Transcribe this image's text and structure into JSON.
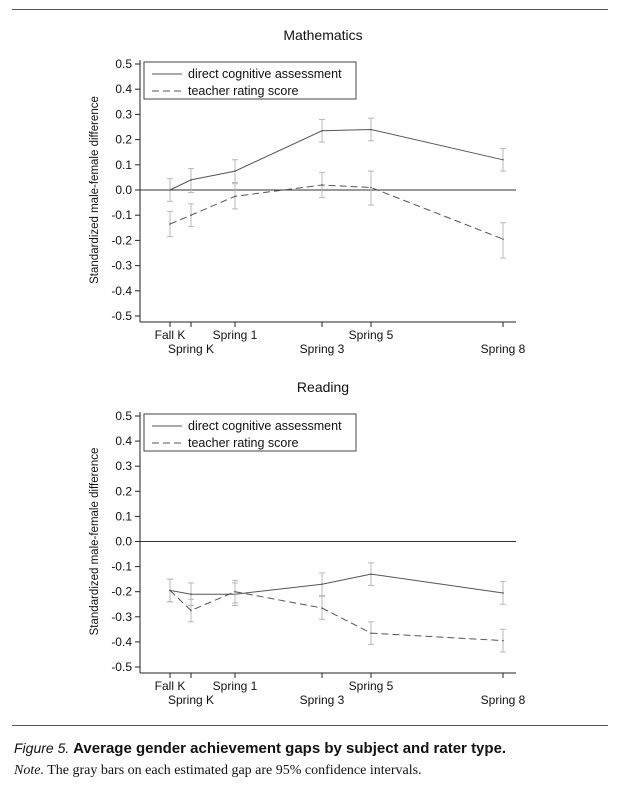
{
  "chart_data": [
    {
      "type": "line",
      "title": "Mathematics",
      "xlabel": "",
      "ylabel": "Standardized male-female difference",
      "ylim": [
        -0.5,
        0.5
      ],
      "yticks": [
        "0.5",
        "0.4",
        "0.3",
        "0.2",
        "0.1",
        "0.0",
        "-0.1",
        "-0.2",
        "-0.3",
        "-0.4",
        "-0.5"
      ],
      "x": [
        0,
        1,
        2,
        3,
        4,
        5
      ],
      "xticks": [
        {
          "label": "Fall K",
          "row": 1
        },
        {
          "label": "Spring K",
          "row": 2
        },
        {
          "label": "Spring 1",
          "row": 1
        },
        {
          "label": "Spring 3",
          "row": 2
        },
        {
          "label": "Spring 5",
          "row": 1
        },
        {
          "label": "Spring 8",
          "row": 2
        }
      ],
      "series": [
        {
          "name": "direct cognitive assessment",
          "style": "solid",
          "values": [
            0.0,
            0.04,
            0.075,
            0.235,
            0.24,
            0.12
          ],
          "ci_low": [
            -0.045,
            -0.01,
            0.03,
            0.19,
            0.195,
            0.075
          ],
          "ci_high": [
            0.045,
            0.085,
            0.12,
            0.28,
            0.285,
            0.165
          ]
        },
        {
          "name": "teacher rating score",
          "style": "dashed",
          "values": [
            -0.135,
            -0.1,
            -0.025,
            0.02,
            0.01,
            -0.195
          ],
          "ci_low": [
            -0.185,
            -0.145,
            -0.075,
            -0.03,
            -0.06,
            -0.27
          ],
          "ci_high": [
            -0.085,
            -0.055,
            0.025,
            0.07,
            0.075,
            -0.13
          ]
        }
      ]
    },
    {
      "type": "line",
      "title": "Reading",
      "xlabel": "",
      "ylabel": "Standardized male-female difference",
      "ylim": [
        -0.5,
        0.5
      ],
      "yticks": [
        "0.5",
        "0.4",
        "0.3",
        "0.2",
        "0.1",
        "0.0",
        "-0.1",
        "-0.2",
        "-0.3",
        "-0.4",
        "-0.5"
      ],
      "x": [
        0,
        1,
        2,
        3,
        4,
        5
      ],
      "xticks": [
        {
          "label": "Fall K",
          "row": 1
        },
        {
          "label": "Spring K",
          "row": 2
        },
        {
          "label": "Spring 1",
          "row": 1
        },
        {
          "label": "Spring 3",
          "row": 2
        },
        {
          "label": "Spring 5",
          "row": 1
        },
        {
          "label": "Spring 8",
          "row": 2
        }
      ],
      "series": [
        {
          "name": "direct cognitive assessment",
          "style": "solid",
          "values": [
            -0.195,
            -0.21,
            -0.21,
            -0.17,
            -0.13,
            -0.205
          ],
          "ci_low": [
            -0.24,
            -0.255,
            -0.255,
            -0.215,
            -0.175,
            -0.25
          ],
          "ci_high": [
            -0.15,
            -0.165,
            -0.165,
            -0.125,
            -0.085,
            -0.16
          ]
        },
        {
          "name": "teacher rating score",
          "style": "dashed",
          "values": [
            -0.195,
            -0.275,
            -0.2,
            -0.265,
            -0.365,
            -0.395
          ],
          "ci_low": [
            -0.24,
            -0.32,
            -0.245,
            -0.31,
            -0.41,
            -0.44
          ],
          "ci_high": [
            -0.15,
            -0.23,
            -0.155,
            -0.22,
            -0.32,
            -0.35
          ]
        }
      ]
    }
  ],
  "caption": {
    "figure_label": "Figure 5.",
    "title": "Average gender achievement gaps by subject and rater type.",
    "note_label": "Note.",
    "note_text": "The gray bars on each estimated gap are 95% confidence intervals."
  }
}
